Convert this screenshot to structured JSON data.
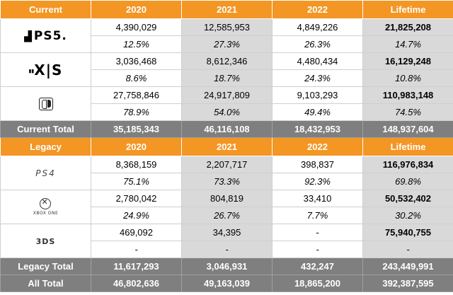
{
  "current": {
    "header": [
      "Current",
      "2020",
      "2021",
      "2022",
      "Lifetime"
    ],
    "rows": [
      {
        "platform_icon": "ps5-logo-icon",
        "logo_text": "PS5.",
        "values": [
          "4,390,029",
          "12,585,953",
          "4,849,226",
          "21,825,208"
        ],
        "shares": [
          "12.5%",
          "27.3%",
          "26.3%",
          "14.7%"
        ]
      },
      {
        "platform_icon": "xbox-series-xs-logo-icon",
        "logo_text": "X|S",
        "values": [
          "3,036,468",
          "8,612,346",
          "4,480,434",
          "16,129,248"
        ],
        "shares": [
          "8.6%",
          "18.7%",
          "24.3%",
          "10.8%"
        ]
      },
      {
        "platform_icon": "nintendo-switch-logo-icon",
        "logo_text": "",
        "values": [
          "27,758,846",
          "24,917,809",
          "9,103,293",
          "110,983,148"
        ],
        "shares": [
          "78.9%",
          "54.0%",
          "49.4%",
          "74.5%"
        ]
      }
    ],
    "total": [
      "Current Total",
      "35,185,343",
      "46,116,108",
      "18,432,953",
      "148,937,604"
    ]
  },
  "legacy": {
    "header": [
      "Legacy",
      "2020",
      "2021",
      "2022",
      "Lifetime"
    ],
    "rows": [
      {
        "platform_icon": "ps4-logo-icon",
        "logo_text": "PS4",
        "values": [
          "8,368,159",
          "2,207,717",
          "398,837",
          "116,976,834"
        ],
        "shares": [
          "75.1%",
          "73.3%",
          "92.3%",
          "69.8%"
        ]
      },
      {
        "platform_icon": "xbox-one-logo-icon",
        "logo_text": "XBOX ONE",
        "values": [
          "2,780,042",
          "804,819",
          "33,410",
          "50,532,402"
        ],
        "shares": [
          "24.9%",
          "26.7%",
          "7.7%",
          "30.2%"
        ]
      },
      {
        "platform_icon": "3ds-logo-icon",
        "logo_text": "3DS",
        "values": [
          "469,092",
          "34,395",
          "-",
          "75,940,755"
        ],
        "shares": [
          "-",
          "-",
          "-",
          "-"
        ]
      }
    ],
    "total": [
      "Legacy Total",
      "11,617,293",
      "3,046,931",
      "432,247",
      "243,449,991"
    ]
  },
  "all_total": [
    "All Total",
    "46,802,636",
    "49,163,039",
    "18,865,200",
    "392,387,595"
  ],
  "colors": {
    "header_orange": "#f39624",
    "total_grey": "#7f7f7f",
    "shaded_cell": "#d9d9d9"
  }
}
